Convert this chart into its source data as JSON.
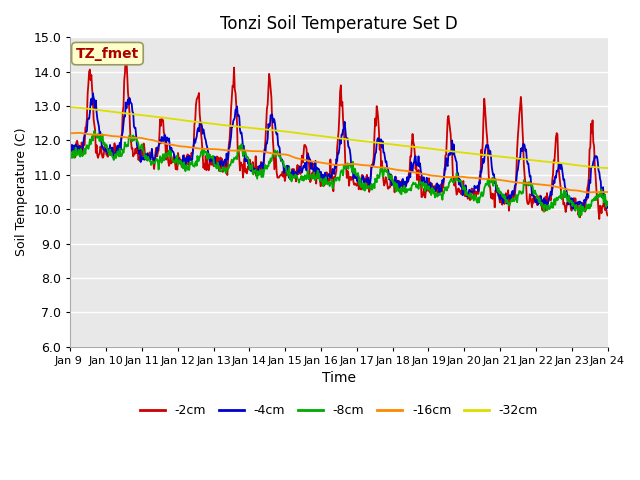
{
  "title": "Tonzi Soil Temperature Set D",
  "xlabel": "Time",
  "ylabel": "Soil Temperature (C)",
  "ylim": [
    6.0,
    15.0
  ],
  "yticks": [
    6.0,
    7.0,
    8.0,
    9.0,
    10.0,
    11.0,
    12.0,
    13.0,
    14.0,
    15.0
  ],
  "colors": {
    "-2cm": "#cc0000",
    "-4cm": "#0000cc",
    "-8cm": "#00aa00",
    "-16cm": "#ff8800",
    "-32cm": "#dddd00"
  },
  "legend_labels": [
    "-2cm",
    "-4cm",
    "-8cm",
    "-16cm",
    "-32cm"
  ],
  "xtick_labels": [
    "Jan 9 ",
    "Jan 10",
    "Jan 11",
    "Jan 12",
    "Jan 13",
    "Jan 14",
    "Jan 15",
    "Jan 16",
    "Jan 17",
    "Jan 18",
    "Jan 19",
    "Jan 20",
    "Jan 21",
    "Jan 22",
    "Jan 23",
    "Jan 24"
  ],
  "annotation_text": "TZ_fmet",
  "annotation_color": "#aa0000",
  "annotation_bg": "#ffffcc",
  "linewidth": 1.3
}
